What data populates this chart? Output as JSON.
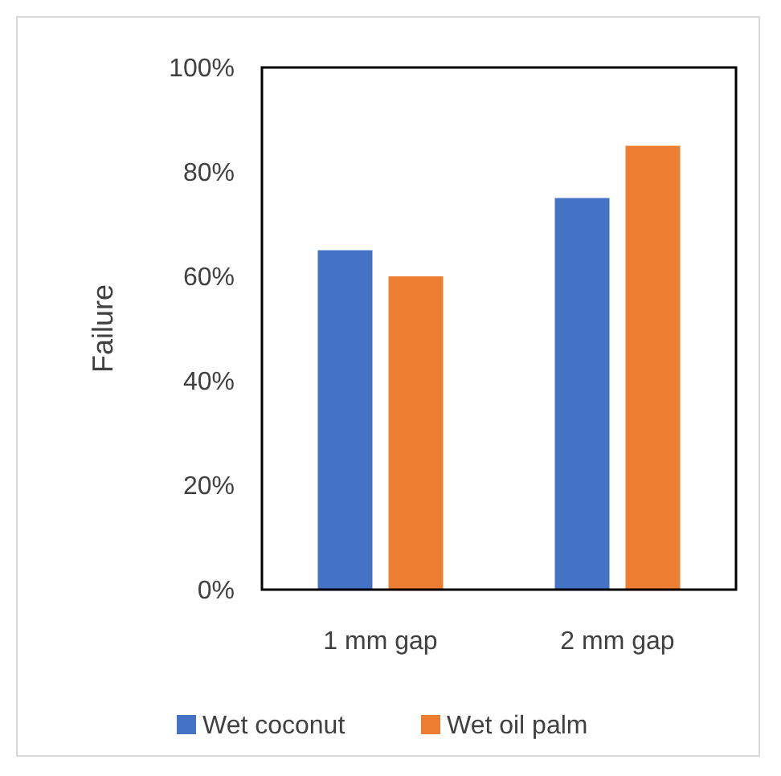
{
  "chart_data": {
    "type": "bar",
    "ylabel": "Failure",
    "categories": [
      "1 mm gap",
      "2 mm gap"
    ],
    "series": [
      {
        "name": "Wet coconut",
        "color": "#4472c4",
        "values": [
          65,
          75
        ]
      },
      {
        "name": "Wet oil palm",
        "color": "#ed7d31",
        "values": [
          60,
          85
        ]
      }
    ],
    "ylim": [
      0,
      100
    ],
    "yticks": [
      {
        "value": 0,
        "label": "0%"
      },
      {
        "value": 20,
        "label": "20%"
      },
      {
        "value": 40,
        "label": "40%"
      },
      {
        "value": 60,
        "label": "60%"
      },
      {
        "value": 80,
        "label": "80%"
      },
      {
        "value": 100,
        "label": "100%"
      }
    ],
    "grid": false,
    "legend": "bottom"
  }
}
